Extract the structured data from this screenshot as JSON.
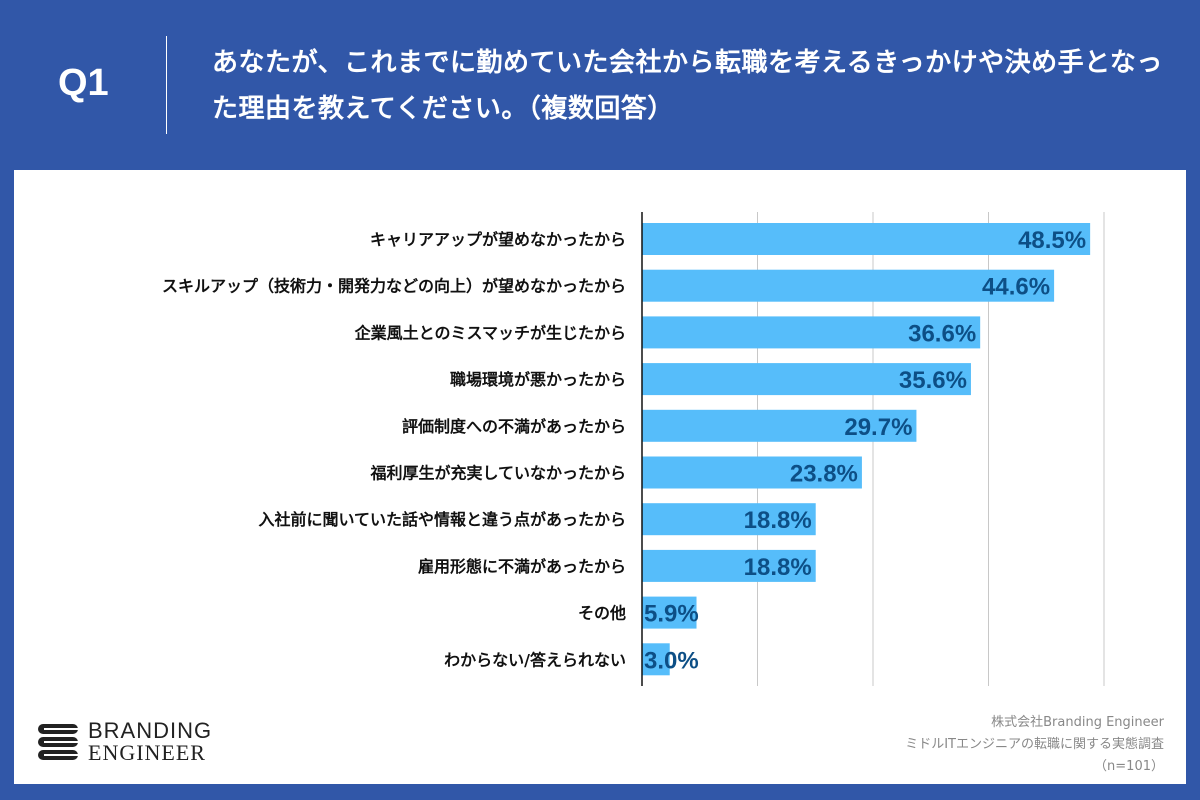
{
  "header": {
    "question_no": "Q1",
    "title": "あなたが、これまでに勤めていた会社から転職を考えるきっかけや決め手となった理由を教えてください。（複数回答）"
  },
  "chart_data": {
    "type": "bar",
    "orientation": "horizontal",
    "categories": [
      "キャリアアップが望めなかったから",
      "スキルアップ（技術力・開発力などの向上）が望めなかったから",
      "企業風土とのミスマッチが生じたから",
      "職場環境が悪かったから",
      "評価制度への不満があったから",
      "福利厚生が充実していなかったから",
      "入社前に聞いていた話や情報と違う点があったから",
      "雇用形態に不満があったから",
      "その他",
      "わからない/答えられない"
    ],
    "values": [
      48.5,
      44.6,
      36.6,
      35.6,
      29.7,
      23.8,
      18.8,
      18.8,
      5.9,
      3.0
    ],
    "data_labels": [
      "48.5%",
      "44.6%",
      "36.6%",
      "35.6%",
      "29.7%",
      "23.8%",
      "18.8%",
      "18.8%",
      "5.9%",
      "3.0%"
    ],
    "unit": "%",
    "xlim": [
      0,
      50
    ],
    "grid": true,
    "bar_color": "#56bdfa",
    "label_color": "#0d4f86"
  },
  "logo": {
    "line1": "BRANDING",
    "line2": "ENGINEER"
  },
  "source": {
    "company": "株式会社Branding Engineer",
    "survey": "ミドルITエンジニアの転職に関する実態調査",
    "sample": "（n=101）"
  }
}
